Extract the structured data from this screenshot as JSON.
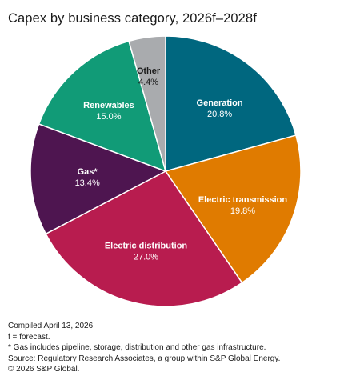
{
  "chart_data": {
    "type": "pie",
    "title": "Capex by business category, 2026f–2028f",
    "categories": [
      "Generation",
      "Electric transmission",
      "Electric distribution",
      "Gas*",
      "Renewables",
      "Other"
    ],
    "values": [
      20.8,
      19.8,
      27.0,
      13.4,
      15.0,
      4.4
    ],
    "value_labels": [
      "20.8%",
      "19.8%",
      "27.0%",
      "13.4%",
      "15.0%",
      "4.4%"
    ],
    "colors": [
      "#00677f",
      "#e07b00",
      "#b81c4f",
      "#4e1550",
      "#119b77",
      "#a9abae"
    ],
    "label_colors": [
      "#ffffff",
      "#ffffff",
      "#ffffff",
      "#ffffff",
      "#ffffff",
      "#1a1a1a"
    ],
    "start": "12 o'clock",
    "direction": "clockwise"
  },
  "footnotes": {
    "compiled": "Compiled April 13, 2026.",
    "forecast": "f = forecast.",
    "gas_note": "* Gas includes pipeline, storage, distribution and other gas infrastructure.",
    "source": "Source: Regulatory Research Associates, a group within S&P Global Energy.",
    "copyright": "© 2026 S&P Global."
  }
}
